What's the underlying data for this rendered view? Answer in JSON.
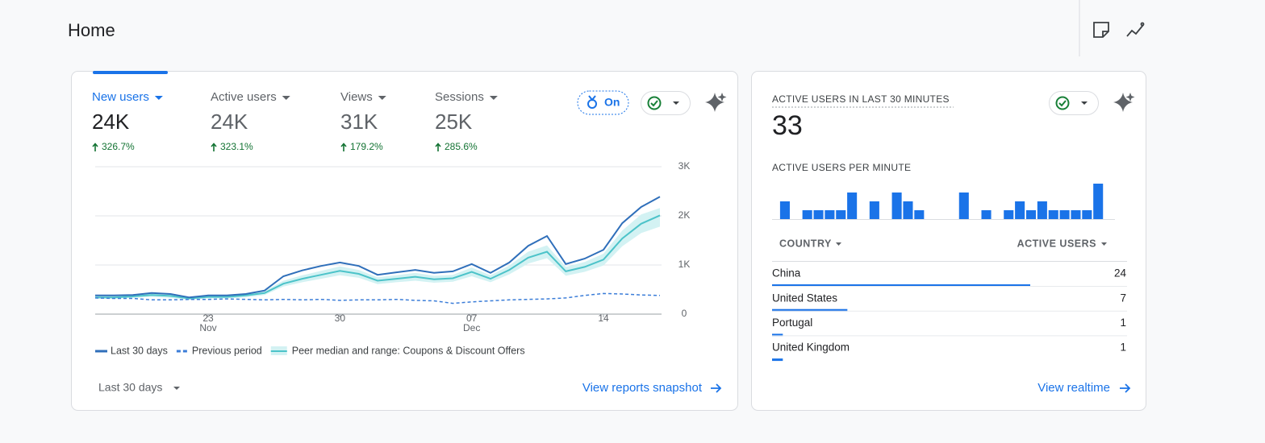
{
  "header": {
    "title": "Home"
  },
  "overview": {
    "metrics": [
      {
        "label": "New users",
        "value": "24K",
        "change": "326.7%"
      },
      {
        "label": "Active users",
        "value": "24K",
        "change": "323.1%"
      },
      {
        "label": "Views",
        "value": "31K",
        "change": "179.2%"
      },
      {
        "label": "Sessions",
        "value": "25K",
        "change": "285.6%"
      }
    ],
    "toggle_label": "On",
    "chart_data": {
      "type": "line",
      "categories": [
        null,
        null,
        null,
        null,
        null,
        null,
        "23",
        null,
        null,
        null,
        null,
        null,
        null,
        "30",
        null,
        null,
        null,
        null,
        null,
        null,
        "07",
        null,
        null,
        null,
        null,
        null,
        null,
        "14",
        null,
        null,
        null
      ],
      "sublabels": [
        null,
        null,
        null,
        null,
        null,
        null,
        "Nov",
        null,
        null,
        null,
        null,
        null,
        null,
        null,
        null,
        null,
        null,
        null,
        null,
        null,
        "Dec",
        null,
        null,
        null,
        null,
        null,
        null,
        null,
        null,
        null,
        null
      ],
      "series": [
        {
          "name": "Last 30 days",
          "color": "#2f6fba",
          "line_style": "solid",
          "values": [
            380,
            380,
            390,
            430,
            410,
            340,
            380,
            380,
            410,
            480,
            770,
            890,
            980,
            1050,
            980,
            800,
            850,
            900,
            840,
            870,
            1020,
            840,
            1050,
            1390,
            1590,
            1020,
            1130,
            1310,
            1850,
            2180,
            2390
          ]
        },
        {
          "name": "Previous period",
          "color": "#3b7dd8",
          "line_style": "dashed",
          "values": [
            330,
            320,
            320,
            290,
            290,
            300,
            300,
            310,
            300,
            290,
            300,
            290,
            300,
            280,
            290,
            290,
            300,
            280,
            270,
            220,
            250,
            270,
            290,
            300,
            310,
            330,
            380,
            420,
            410,
            390,
            380
          ]
        },
        {
          "name": "Peer median and range: Coupons & Discount Offers",
          "color": "#4cc3c9",
          "range_color": "#d3f2f3",
          "line_style": "solid",
          "values": [
            340,
            340,
            360,
            390,
            370,
            320,
            350,
            350,
            380,
            430,
            620,
            720,
            800,
            880,
            820,
            680,
            720,
            760,
            710,
            730,
            860,
            720,
            900,
            1150,
            1270,
            870,
            960,
            1110,
            1540,
            1840,
            2010
          ],
          "range_low": [
            310,
            310,
            330,
            350,
            330,
            290,
            320,
            320,
            340,
            390,
            560,
            650,
            720,
            790,
            740,
            610,
            650,
            680,
            640,
            660,
            770,
            650,
            810,
            1030,
            1140,
            780,
            860,
            990,
            1380,
            1650,
            1780
          ],
          "range_high": [
            370,
            370,
            390,
            430,
            410,
            350,
            380,
            380,
            420,
            470,
            680,
            790,
            880,
            970,
            900,
            750,
            790,
            840,
            780,
            800,
            950,
            790,
            990,
            1270,
            1400,
            960,
            1060,
            1230,
            1700,
            2030,
            2160
          ]
        }
      ],
      "ylim": [
        0,
        3000
      ],
      "yticks": [
        0,
        {
          "value": 1000,
          "label": "1K"
        },
        {
          "value": 2000,
          "label": "2K"
        },
        {
          "value": 3000,
          "label": "3K"
        }
      ],
      "grid": true
    },
    "date_range": "Last 30 days",
    "link": "View reports snapshot"
  },
  "realtime": {
    "title": "ACTIVE USERS IN LAST 30 MINUTES",
    "value": 33,
    "chart_data": {
      "type": "bar",
      "title": "ACTIVE USERS PER MINUTE",
      "color": "#1a73e8",
      "values": [
        2,
        0,
        1,
        1,
        1,
        1,
        3,
        0,
        2,
        0,
        3,
        2,
        1,
        0,
        0,
        0,
        3,
        0,
        1,
        0,
        1,
        2,
        1,
        2,
        1,
        1,
        1,
        1,
        4,
        0
      ]
    },
    "table": {
      "headers": [
        "COUNTRY",
        "ACTIVE USERS"
      ],
      "rows": [
        [
          "China",
          24
        ],
        [
          "United States",
          7
        ],
        [
          "Portugal",
          1
        ],
        [
          "United Kingdom",
          1
        ]
      ]
    },
    "link": "View realtime"
  }
}
